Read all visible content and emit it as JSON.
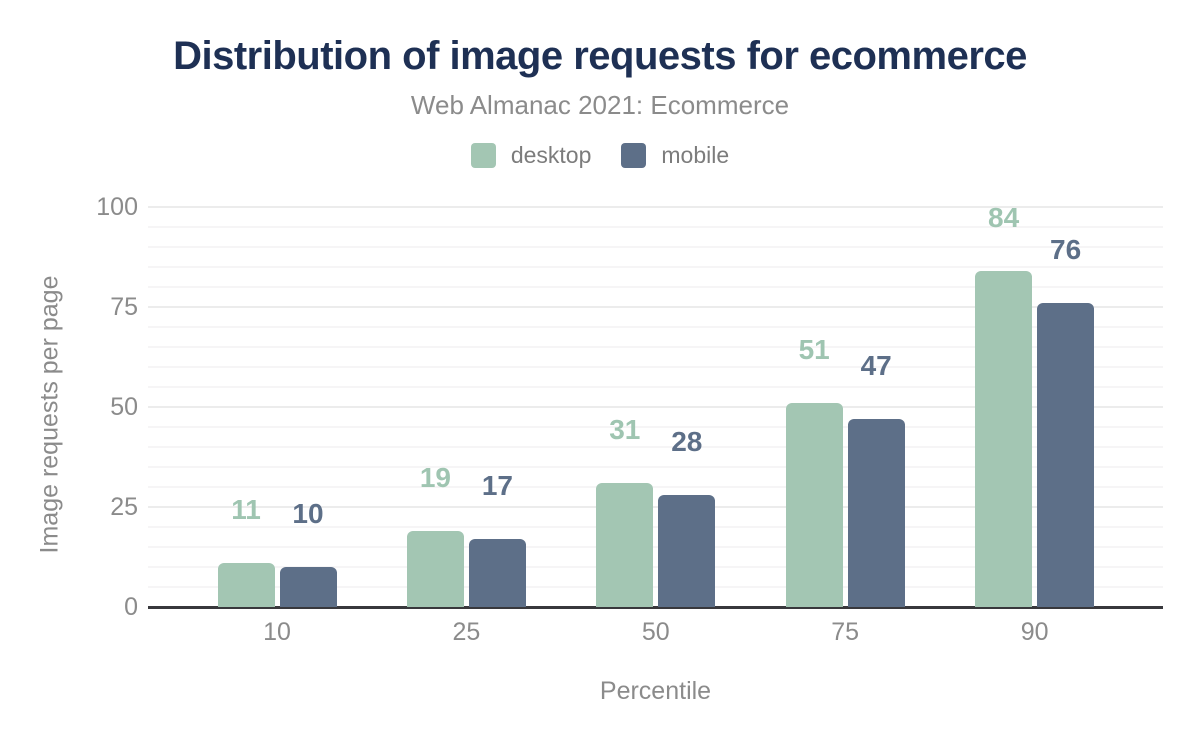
{
  "header": {
    "title": "Distribution of image requests for ecommerce",
    "subtitle": "Web Almanac 2021: Ecommerce"
  },
  "legend": {
    "items": [
      {
        "label": "desktop",
        "color": "#a3c6b3"
      },
      {
        "label": "mobile",
        "color": "#5d6f88"
      }
    ]
  },
  "chart_data": {
    "type": "bar",
    "title": "Distribution of image requests for ecommerce",
    "subtitle": "Web Almanac 2021: Ecommerce",
    "categories": [
      "10",
      "25",
      "50",
      "75",
      "90"
    ],
    "series": [
      {
        "name": "desktop",
        "values": [
          11,
          19,
          31,
          51,
          84
        ],
        "color": "#a3c6b3",
        "label_color": "#9fc5b1"
      },
      {
        "name": "mobile",
        "values": [
          10,
          17,
          28,
          47,
          76
        ],
        "color": "#5d6f88",
        "label_color": "#5d6f88"
      }
    ],
    "xlabel": "Percentile",
    "ylabel": "Image requests per page",
    "ylim": [
      0,
      100
    ],
    "yticks": [
      0,
      25,
      50,
      75,
      100
    ],
    "minor_grid_step": 5,
    "grid": true,
    "legend_position": "top",
    "value_labels": true
  },
  "colors": {
    "title": "#1e3054",
    "axis_text": "#8b8b8b",
    "legend_text": "#7c7c7c",
    "gridline_major": "#ececec",
    "gridline_minor": "#f6f5f6",
    "baseline": "#38383c",
    "background": "#ffffff"
  }
}
